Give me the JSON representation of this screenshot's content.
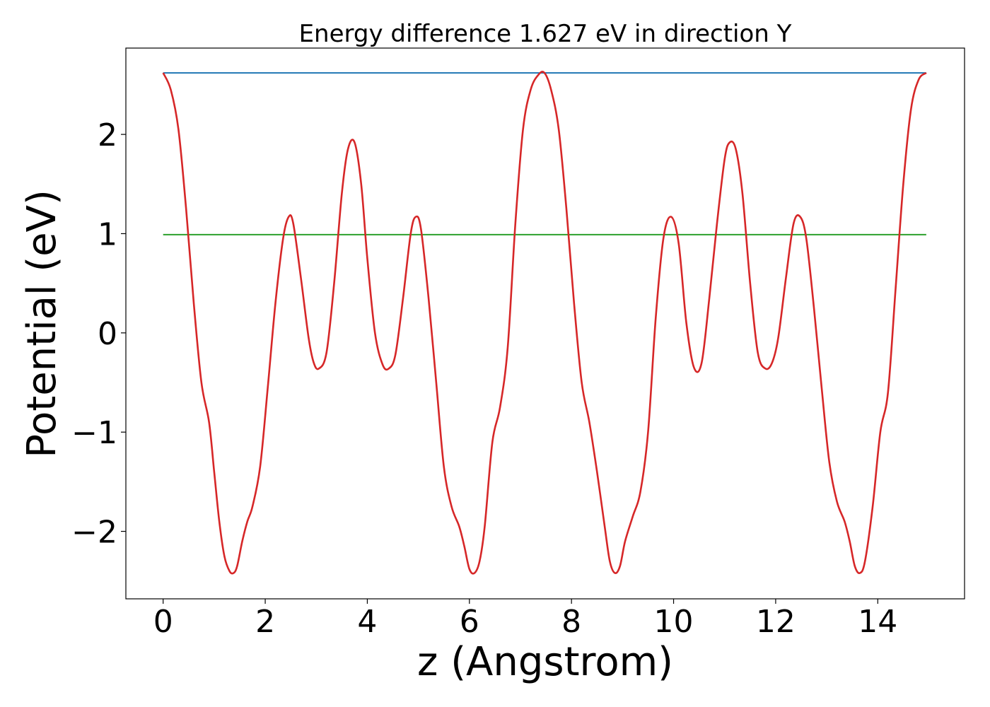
{
  "chart_data": {
    "type": "line",
    "title": "Energy difference 1.627 eV in direction Y",
    "xlabel": "z (Angstrom)",
    "ylabel": "Potential (eV)",
    "xlim": [
      -0.73,
      15.7
    ],
    "ylim": [
      -2.68,
      2.87
    ],
    "xticks": [
      0,
      2,
      4,
      6,
      8,
      10,
      12,
      14
    ],
    "xtick_labels": [
      "0",
      "2",
      "4",
      "6",
      "8",
      "10",
      "12",
      "14"
    ],
    "yticks": [
      -2,
      -1,
      0,
      1,
      2
    ],
    "ytick_labels": [
      "−2",
      "−1",
      "0",
      "1",
      "2"
    ],
    "grid": false,
    "series": [
      {
        "color": "#d62728",
        "x": [
          0.0,
          0.15,
          0.3,
          0.45,
          0.6,
          0.75,
          0.9,
          1.0,
          1.1,
          1.2,
          1.3,
          1.38,
          1.45,
          1.55,
          1.65,
          1.75,
          1.9,
          2.05,
          2.2,
          2.35,
          2.46,
          2.55,
          2.7,
          2.85,
          2.95,
          3.05,
          3.2,
          3.35,
          3.5,
          3.62,
          3.75,
          3.88,
          4.0,
          4.15,
          4.3,
          4.42,
          4.55,
          4.7,
          4.85,
          4.95,
          5.05,
          5.2,
          5.35,
          5.5,
          5.65,
          5.8,
          5.9,
          6.0,
          6.1,
          6.2,
          6.3,
          6.45,
          6.6,
          6.75,
          6.9,
          7.05,
          7.2,
          7.35,
          7.47,
          7.6,
          7.75,
          7.9,
          8.05,
          8.2,
          8.35,
          8.5,
          8.65,
          8.75,
          8.85,
          8.95,
          9.05,
          9.2,
          9.35,
          9.5,
          9.65,
          9.8,
          9.95,
          10.1,
          10.25,
          10.4,
          10.55,
          10.7,
          10.85,
          11.0,
          11.1,
          11.22,
          11.35,
          11.5,
          11.65,
          11.8,
          11.93,
          12.05,
          12.2,
          12.35,
          12.48,
          12.6,
          12.75,
          12.9,
          13.05,
          13.2,
          13.35,
          13.45,
          13.55,
          13.65,
          13.75,
          13.9,
          14.05,
          14.2,
          14.35,
          14.5,
          14.65,
          14.8,
          14.95
        ],
        "values": [
          2.62,
          2.45,
          2.05,
          1.25,
          0.3,
          -0.5,
          -0.9,
          -1.4,
          -1.9,
          -2.25,
          -2.4,
          -2.42,
          -2.35,
          -2.1,
          -1.9,
          -1.75,
          -1.35,
          -0.55,
          0.3,
          0.95,
          1.17,
          1.1,
          0.55,
          -0.05,
          -0.3,
          -0.36,
          -0.2,
          0.5,
          1.4,
          1.85,
          1.92,
          1.5,
          0.75,
          0.0,
          -0.32,
          -0.36,
          -0.22,
          0.35,
          1.0,
          1.17,
          1.05,
          0.35,
          -0.5,
          -1.35,
          -1.75,
          -1.95,
          -2.15,
          -2.38,
          -2.42,
          -2.3,
          -1.95,
          -1.1,
          -0.75,
          -0.15,
          1.1,
          2.05,
          2.45,
          2.6,
          2.62,
          2.45,
          2.05,
          1.25,
          0.3,
          -0.5,
          -0.9,
          -1.4,
          -1.95,
          -2.3,
          -2.42,
          -2.35,
          -2.1,
          -1.85,
          -1.6,
          -1.0,
          0.15,
          0.95,
          1.17,
          0.9,
          0.1,
          -0.35,
          -0.3,
          0.35,
          1.1,
          1.75,
          1.92,
          1.85,
          1.4,
          0.5,
          -0.2,
          -0.36,
          -0.3,
          -0.05,
          0.55,
          1.1,
          1.17,
          0.95,
          0.25,
          -0.55,
          -1.3,
          -1.7,
          -1.9,
          -2.1,
          -2.35,
          -2.42,
          -2.3,
          -1.75,
          -1.0,
          -0.6,
          0.45,
          1.5,
          2.25,
          2.55,
          2.62
        ]
      },
      {
        "color": "#1f77b4",
        "x": [
          0.0,
          14.95
        ],
        "values": [
          2.62,
          2.62
        ]
      },
      {
        "color": "#2ca02c",
        "x": [
          0.0,
          14.95
        ],
        "values": [
          0.99,
          0.99
        ]
      }
    ]
  }
}
